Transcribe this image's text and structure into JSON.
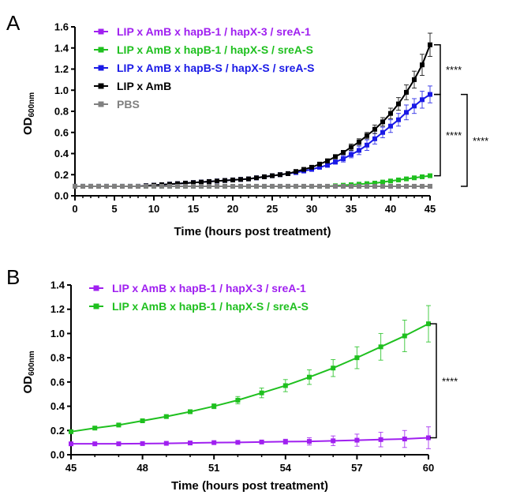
{
  "chart_data": [
    {
      "panel": "A",
      "type": "line",
      "xlabel": "Time (hours post treatment)",
      "ylabel": "OD",
      "ylabel_sub": "600nm",
      "xlim": [
        0,
        45
      ],
      "ylim": [
        0,
        1.6
      ],
      "xticks": [
        "0",
        "5",
        "10",
        "15",
        "20",
        "25",
        "30",
        "35",
        "40",
        "45"
      ],
      "yticks": [
        "0.0",
        "0.2",
        "0.4",
        "0.6",
        "0.8",
        "1.0",
        "1.2",
        "1.4",
        "1.6"
      ],
      "grid": false,
      "legend_position": "top-left",
      "x": [
        0,
        1,
        2,
        3,
        4,
        5,
        6,
        7,
        8,
        9,
        10,
        11,
        12,
        13,
        14,
        15,
        16,
        17,
        18,
        19,
        20,
        21,
        22,
        23,
        24,
        25,
        26,
        27,
        28,
        29,
        30,
        31,
        32,
        33,
        34,
        35,
        36,
        37,
        38,
        39,
        40,
        41,
        42,
        43,
        44,
        45
      ],
      "series": [
        {
          "name": "LIP x AmB x hapB-1 / hapX-3 / sreA-1",
          "color": "#a020f0",
          "values": [
            0.09,
            0.09,
            0.09,
            0.09,
            0.09,
            0.09,
            0.09,
            0.09,
            0.09,
            0.09,
            0.09,
            0.09,
            0.09,
            0.09,
            0.09,
            0.09,
            0.09,
            0.09,
            0.09,
            0.09,
            0.09,
            0.09,
            0.09,
            0.09,
            0.09,
            0.09,
            0.09,
            0.09,
            0.09,
            0.09,
            0.09,
            0.09,
            0.09,
            0.09,
            0.09,
            0.09,
            0.09,
            0.09,
            0.09,
            0.09,
            0.09,
            0.09,
            0.09,
            0.09,
            0.09,
            0.09
          ]
        },
        {
          "name": "LIP x AmB x hapB-1 / hapX-S / sreA-S",
          "color": "#1fc01f",
          "values": [
            0.09,
            0.09,
            0.09,
            0.09,
            0.09,
            0.09,
            0.09,
            0.09,
            0.09,
            0.09,
            0.09,
            0.09,
            0.09,
            0.09,
            0.09,
            0.09,
            0.09,
            0.09,
            0.09,
            0.09,
            0.09,
            0.09,
            0.09,
            0.09,
            0.09,
            0.09,
            0.09,
            0.09,
            0.09,
            0.09,
            0.09,
            0.09,
            0.09,
            0.095,
            0.1,
            0.105,
            0.11,
            0.115,
            0.12,
            0.13,
            0.14,
            0.15,
            0.16,
            0.17,
            0.18,
            0.19
          ]
        },
        {
          "name": "LIP x AmB x hapB-S / hapX-S / sreA-S",
          "color": "#1a1ae6",
          "error": [
            0,
            0,
            0,
            0,
            0,
            0,
            0,
            0,
            0,
            0,
            0,
            0,
            0,
            0,
            0,
            0,
            0,
            0,
            0,
            0,
            0,
            0,
            0,
            0,
            0,
            0,
            0,
            0,
            0,
            0,
            0.01,
            0.015,
            0.02,
            0.02,
            0.03,
            0.03,
            0.04,
            0.05,
            0.05,
            0.05,
            0.06,
            0.06,
            0.07,
            0.07,
            0.08,
            0.08
          ],
          "values": [
            0.09,
            0.09,
            0.09,
            0.09,
            0.09,
            0.09,
            0.09,
            0.09,
            0.09,
            0.095,
            0.1,
            0.105,
            0.11,
            0.115,
            0.12,
            0.125,
            0.13,
            0.135,
            0.14,
            0.145,
            0.15,
            0.155,
            0.16,
            0.17,
            0.18,
            0.19,
            0.2,
            0.21,
            0.22,
            0.235,
            0.25,
            0.27,
            0.29,
            0.32,
            0.35,
            0.39,
            0.43,
            0.48,
            0.54,
            0.6,
            0.66,
            0.72,
            0.79,
            0.85,
            0.91,
            0.96
          ]
        },
        {
          "name": "LIP x AmB",
          "color": "#000000",
          "error": [
            0,
            0,
            0,
            0,
            0,
            0,
            0,
            0,
            0,
            0,
            0,
            0,
            0,
            0,
            0,
            0,
            0,
            0,
            0,
            0,
            0,
            0,
            0,
            0,
            0,
            0,
            0,
            0,
            0,
            0,
            0.01,
            0.015,
            0.02,
            0.02,
            0.02,
            0.03,
            0.03,
            0.03,
            0.04,
            0.04,
            0.05,
            0.06,
            0.07,
            0.08,
            0.1,
            0.11
          ],
          "values": [
            0.09,
            0.09,
            0.09,
            0.09,
            0.09,
            0.09,
            0.09,
            0.09,
            0.09,
            0.095,
            0.1,
            0.105,
            0.11,
            0.115,
            0.12,
            0.125,
            0.13,
            0.135,
            0.14,
            0.145,
            0.15,
            0.155,
            0.16,
            0.17,
            0.18,
            0.19,
            0.2,
            0.21,
            0.23,
            0.25,
            0.27,
            0.3,
            0.33,
            0.37,
            0.41,
            0.46,
            0.51,
            0.57,
            0.63,
            0.7,
            0.78,
            0.87,
            0.98,
            1.1,
            1.24,
            1.43
          ]
        },
        {
          "name": "PBS",
          "color": "#808080",
          "values": [
            0.09,
            0.09,
            0.09,
            0.09,
            0.09,
            0.09,
            0.09,
            0.09,
            0.09,
            0.09,
            0.09,
            0.09,
            0.09,
            0.09,
            0.09,
            0.09,
            0.09,
            0.09,
            0.09,
            0.09,
            0.09,
            0.09,
            0.09,
            0.09,
            0.09,
            0.09,
            0.09,
            0.09,
            0.09,
            0.09,
            0.09,
            0.09,
            0.09,
            0.09,
            0.09,
            0.09,
            0.09,
            0.09,
            0.09,
            0.09,
            0.09,
            0.09,
            0.09,
            0.09,
            0.09,
            0.09
          ]
        }
      ],
      "annotations": [
        {
          "text": "****",
          "from": 0.96,
          "to": 1.43,
          "bracket": 1
        },
        {
          "text": "****",
          "from": 0.19,
          "to": 0.96,
          "bracket": 1
        },
        {
          "text": "****",
          "from": 0.09,
          "to": 0.96,
          "bracket": 2
        }
      ]
    },
    {
      "panel": "B",
      "type": "line",
      "xlabel": "Time (hours post treatment)",
      "ylabel": "OD",
      "ylabel_sub": "600nm",
      "xlim": [
        45,
        60
      ],
      "ylim": [
        0,
        1.4
      ],
      "xticks": [
        "45",
        "48",
        "51",
        "54",
        "57",
        "60"
      ],
      "yticks": [
        "0.0",
        "0.2",
        "0.4",
        "0.6",
        "0.8",
        "1.0",
        "1.2",
        "1.4"
      ],
      "grid": false,
      "legend_position": "top-left",
      "x": [
        45,
        46,
        47,
        48,
        49,
        50,
        51,
        52,
        53,
        54,
        55,
        56,
        57,
        58,
        59,
        60
      ],
      "series": [
        {
          "name": "LIP x AmB x hapB-1 / hapX-3 / sreA-1",
          "color": "#a020f0",
          "values": [
            0.09,
            0.09,
            0.09,
            0.092,
            0.094,
            0.097,
            0.1,
            0.102,
            0.105,
            0.108,
            0.11,
            0.115,
            0.12,
            0.125,
            0.13,
            0.14
          ],
          "error": [
            0,
            0,
            0,
            0,
            0,
            0,
            0,
            0.005,
            0.01,
            0.02,
            0.03,
            0.04,
            0.05,
            0.06,
            0.07,
            0.09
          ]
        },
        {
          "name": "LIP x AmB x hapB-1 / hapX-S / sreA-S",
          "color": "#1fc01f",
          "values": [
            0.19,
            0.22,
            0.245,
            0.28,
            0.315,
            0.355,
            0.4,
            0.45,
            0.51,
            0.57,
            0.64,
            0.715,
            0.8,
            0.89,
            0.98,
            1.08
          ],
          "error": [
            0,
            0.01,
            0.01,
            0.01,
            0.01,
            0.015,
            0.02,
            0.03,
            0.04,
            0.05,
            0.06,
            0.07,
            0.09,
            0.11,
            0.13,
            0.15
          ]
        }
      ],
      "annotations": [
        {
          "text": "****",
          "from": 0.14,
          "to": 1.08,
          "bracket": 1
        }
      ]
    }
  ]
}
